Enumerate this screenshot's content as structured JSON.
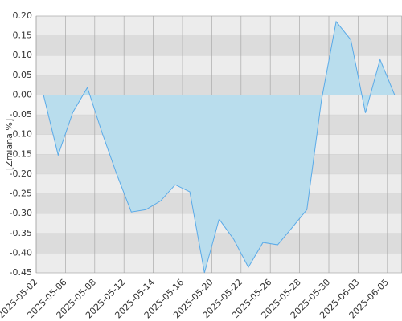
{
  "chart_data": {
    "type": "area",
    "y_label": "[Zmiana %]",
    "categories": [
      "2025-05-02",
      null,
      "2025-05-06",
      null,
      "2025-05-08",
      null,
      "2025-05-12",
      null,
      "2025-05-14",
      null,
      "2025-05-16",
      null,
      "2025-05-20",
      null,
      "2025-05-22",
      null,
      "2025-05-26",
      null,
      "2025-05-28",
      null,
      "2025-05-30",
      null,
      "2025-06-03",
      null,
      "2025-06-05"
    ],
    "values": [
      0.0,
      -0.152,
      -0.044,
      0.019,
      -0.095,
      -0.2,
      -0.296,
      -0.29,
      -0.268,
      -0.227,
      -0.245,
      -0.45,
      -0.314,
      -0.365,
      -0.436,
      -0.373,
      -0.379,
      -0.335,
      -0.29,
      -0.012,
      0.186,
      0.14,
      -0.045,
      0.09,
      0.0
    ],
    "color": "#5aaae8",
    "fill": "#b9dded",
    "ylim": [
      -0.45,
      0.2
    ],
    "yticks": [
      {
        "value": 0.2,
        "label": "0.20"
      },
      0.15,
      {
        "value": 0.1,
        "label": "0.10"
      },
      0.05,
      {
        "value": 0,
        "label": "0.00"
      },
      -0.05,
      {
        "value": -0.1,
        "label": "-0.10"
      },
      -0.15,
      {
        "value": -0.2,
        "label": "-0.20"
      },
      -0.25,
      {
        "value": -0.3,
        "label": "-0.30"
      },
      -0.35,
      {
        "value": -0.4,
        "label": "-0.40"
      },
      -0.45
    ],
    "grid": true
  }
}
